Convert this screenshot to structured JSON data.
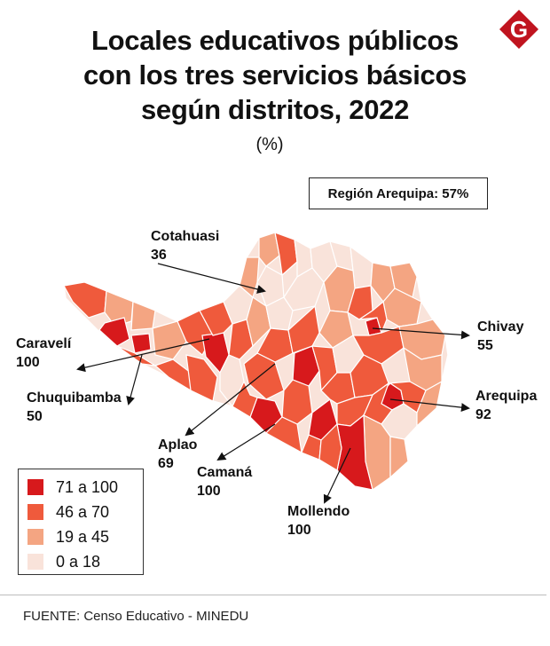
{
  "title_lines": [
    "Locales educativos públicos",
    "con los tres servicios básicos",
    "según distritos, 2022"
  ],
  "subtitle": "(%)",
  "region_total": "Región Arequipa: 57%",
  "logo_letter": "G",
  "colors": {
    "dark": "#d7191c",
    "mid": "#ef5a3c",
    "light": "#f4a582",
    "pale": "#f9e3da",
    "logo": "#c0141f"
  },
  "callouts": [
    {
      "name": "Cotahuasi",
      "value": "36"
    },
    {
      "name": "Chivay",
      "value": "55"
    },
    {
      "name": "Caravelí",
      "value": "100"
    },
    {
      "name": "Arequipa",
      "value": "92"
    },
    {
      "name": "Chuquibamba",
      "value": "50"
    },
    {
      "name": "Aplao",
      "value": "69"
    },
    {
      "name": "Camaná",
      "value": "100"
    },
    {
      "name": "Mollendo",
      "value": "100"
    }
  ],
  "legend": [
    {
      "label": "71 a 100",
      "color": "#d7191c"
    },
    {
      "label": "46 a 70",
      "color": "#ef5a3c"
    },
    {
      "label": "19 a 45",
      "color": "#f4a582"
    },
    {
      "label": "0 a 18",
      "color": "#f9e3da"
    }
  ],
  "source": "FUENTE: Censo Educativo - MINEDU"
}
